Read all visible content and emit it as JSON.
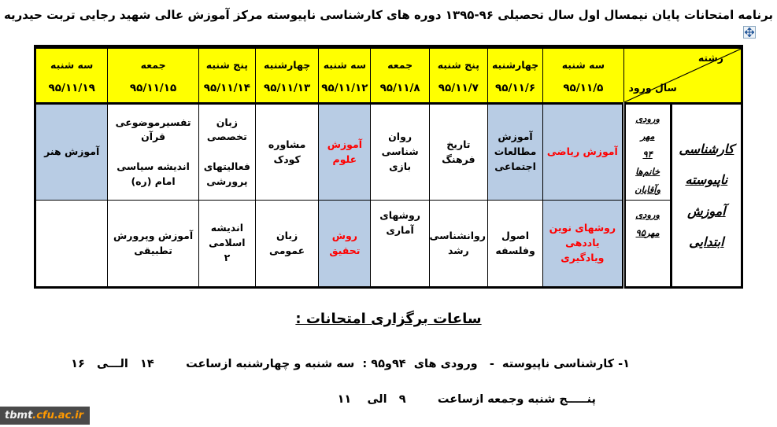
{
  "colors": {
    "header_bg": "#ffff00",
    "highlight_cell_bg": "#b8cce4",
    "highlight_text": "#ff0000",
    "border": "#000000",
    "watermark_bg": "#4a4a4a",
    "watermark_accent": "#ff9900",
    "handle_blue": "#2d5e9e"
  },
  "page": {
    "title": "برنامه امتحانات پایان نیمسال اول سال تحصیلی ۹۶-۱۳۹۵ دوره های کارشناسی ناپیوسته مرکز آموزش عالی شهید رجایی تربت حیدریه"
  },
  "table": {
    "corner": {
      "field_label": "رشته",
      "entry_year_label": "سال ورود"
    },
    "major": {
      "lines": [
        "کارشناسی",
        "ناپیوسته",
        "آموزش",
        "ابتدایی"
      ]
    },
    "columns": [
      {
        "day": "سه شنبه",
        "date": "۹۵/۱۱/۵"
      },
      {
        "day": "چهارشنبه",
        "date": "۹۵/۱۱/۶"
      },
      {
        "day": "پنج شنبه",
        "date": "۹۵/۱۱/۷"
      },
      {
        "day": "جمعه",
        "date": "۹۵/۱۱/۸"
      },
      {
        "day": "سه شنبه",
        "date": "۹۵/۱۱/۱۲"
      },
      {
        "day": "چهارشنبه",
        "date": "۹۵/۱۱/۱۳"
      },
      {
        "day": "پنج شنبه",
        "date": "۹۵/۱۱/۱۴"
      },
      {
        "day": "جمعه",
        "date": "۹۵/۱۱/۱۵"
      },
      {
        "day": "سه شنبه",
        "date": "۹۵/۱۱/۱۹"
      }
    ],
    "rows": [
      {
        "entry": {
          "lines": [
            "ورودی",
            "مهر",
            "۹۴",
            "خانم‌ها",
            "وآقایان"
          ]
        },
        "cells": [
          {
            "lines": [
              "آموزش ریاضی"
            ]
          },
          {
            "lines": [
              "آموزش",
              "مطالعات",
              "اجتماعی"
            ]
          },
          {
            "lines": [
              "تاریخ",
              "فرهنگ"
            ]
          },
          {
            "lines": [
              "روان شناسی",
              "بازی"
            ]
          },
          {
            "lines": [
              "آموزش علوم"
            ]
          },
          {
            "lines": [
              "مشاوره",
              "کودک"
            ]
          },
          {
            "lines": [
              "زبان تخصصی",
              "",
              "فعالیتهای",
              "پرورشی"
            ]
          },
          {
            "lines": [
              "تفسیرموضوعی قرآن",
              "",
              "اندیشه سیاسی امام (ره)"
            ]
          },
          {
            "lines": [
              "آموزش هنر"
            ]
          }
        ]
      },
      {
        "entry": {
          "lines": [
            "ورودی",
            "مهر۹۵"
          ]
        },
        "cells": [
          {
            "lines": [
              "روشهای نوین",
              "یاددهی ویادگیری"
            ]
          },
          {
            "lines": [
              "اصول وفلسفه"
            ]
          },
          {
            "lines": [
              "روانشناسی",
              "رشد"
            ]
          },
          {
            "lines": [
              "روشهای",
              "آماری"
            ]
          },
          {
            "lines": [
              "روش تحقیق"
            ]
          },
          {
            "lines": [
              "زبان عمومی"
            ]
          },
          {
            "lines": [
              "اندیشه اسلامی",
              "۲"
            ]
          },
          {
            "lines": [
              "آموزش وپرورش تطبیقی"
            ]
          },
          {
            "lines": []
          }
        ]
      }
    ]
  },
  "footer": {
    "heading": "ساعات برگزاری امتحانات :",
    "line1": "۱- کارشناسی ناپیوسته  -   ورودی های  ۹۴و۹۵ :  سه شنبه و چهارشنبه ازساعت        ۱۴   الـــی   ۱۶",
    "line2": "پنـــــج شنبه وجمعه ازساعت        ۹   الی    ۱۱"
  },
  "watermark": {
    "site_prefix": "tbmt",
    "site_suffix": ".cfu.ac.ir"
  }
}
